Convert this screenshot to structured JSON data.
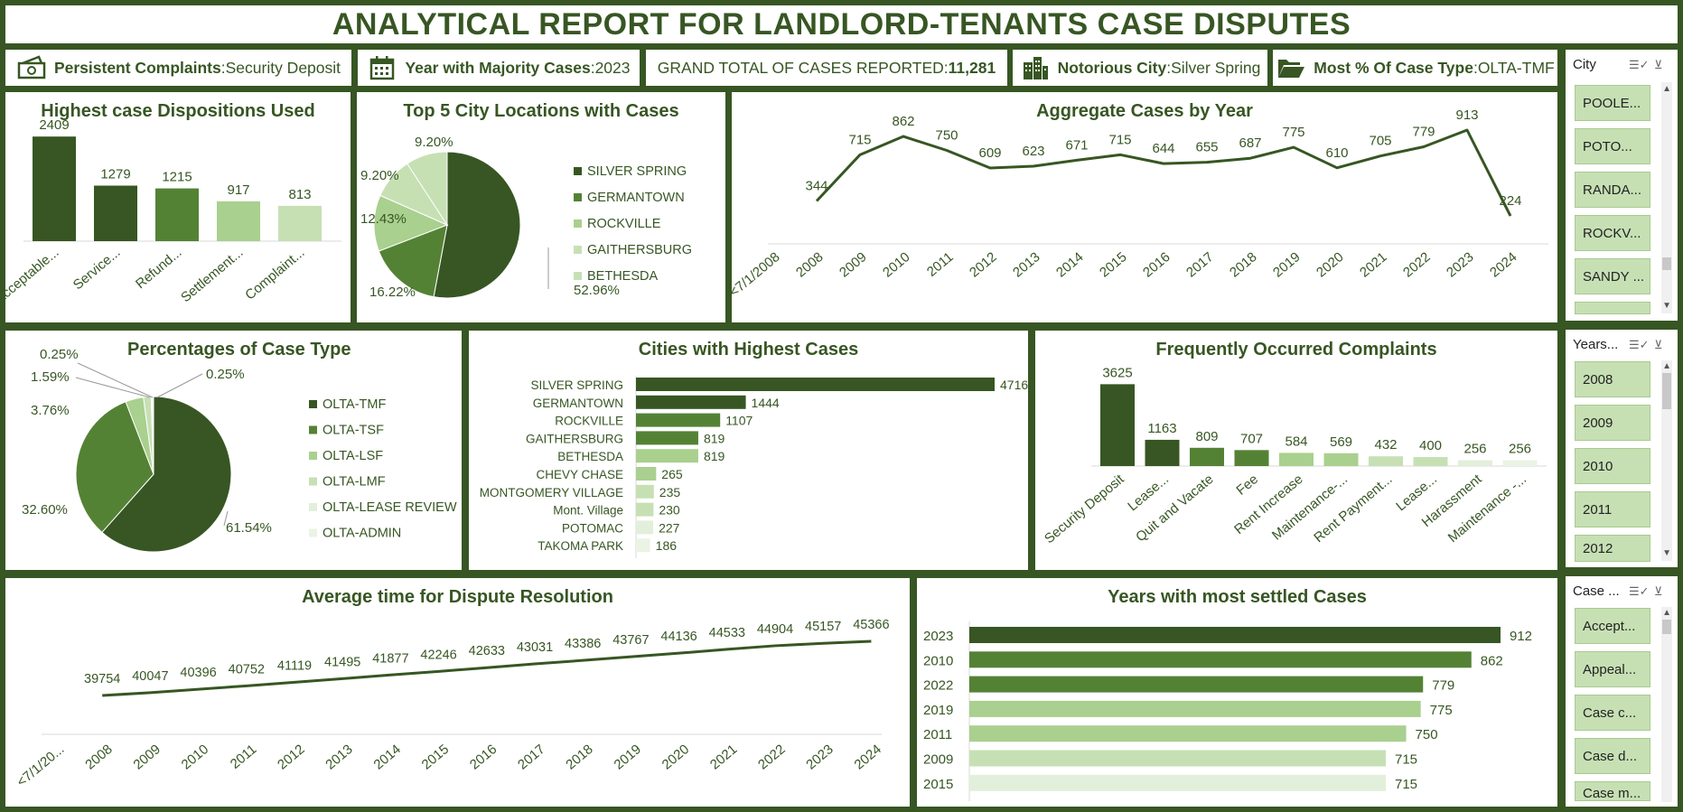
{
  "title": "ANALYTICAL REPORT FOR LANDLORD-TENANTS CASE DISPUTES",
  "kpis": {
    "k1": {
      "label": "Persistent Complaints",
      "sep": ":",
      "value": " Security Deposit",
      "icon": "money-icon"
    },
    "k2": {
      "label": "Year with Majority Cases",
      "sep": ":",
      "value": " 2023",
      "icon": "calendar-icon"
    },
    "k3": {
      "label": "GRAND TOTAL OF CASES REPORTED",
      "sep": ": ",
      "value": "11,281"
    },
    "k4": {
      "label": "Notorious City",
      "sep": ":",
      "value": " Silver Spring",
      "icon": "buildings-icon"
    },
    "k5": {
      "label": "Most % Of Case Type",
      "sep": ":",
      "value": " OLTA-TMF",
      "icon": "folder-icon"
    }
  },
  "colors": {
    "dark": "#375623",
    "mid": "#548235",
    "light": "#a9d08e",
    "pale": "#c6e0b4",
    "paler": "#e2efda",
    "palest": "#ebf3e5",
    "line": "#375623"
  },
  "chart_data": [
    {
      "id": "dispositions",
      "type": "bar",
      "title": "Highest case Dispositions Used",
      "categories": [
        "Acceptable...",
        "Service...",
        "Refund...",
        "Settlement...",
        "Complaint..."
      ],
      "values": [
        2409,
        1279,
        1215,
        917,
        813
      ],
      "ylim": [
        0,
        2600
      ]
    },
    {
      "id": "top5cities",
      "type": "pie",
      "title": "Top 5 City Locations  with Cases",
      "categories": [
        "SILVER SPRING",
        "GERMANTOWN",
        "ROCKVILLE",
        "GAITHERSBURG",
        "BETHESDA"
      ],
      "values": [
        52.96,
        16.22,
        12.43,
        9.2,
        9.2
      ],
      "labels": [
        "52.96%",
        "16.22%",
        "12.43%",
        "9.20%",
        "9.20%"
      ],
      "legend": "right"
    },
    {
      "id": "casesbyyear",
      "type": "line",
      "title": "Aggregate Cases by Year",
      "categories": [
        "<7/1/2008",
        "2008",
        "2009",
        "2010",
        "2011",
        "2012",
        "2013",
        "2014",
        "2015",
        "2016",
        "2017",
        "2018",
        "2019",
        "2020",
        "2021",
        "2022",
        "2023",
        "2024"
      ],
      "values": [
        null,
        344,
        715,
        862,
        750,
        609,
        623,
        671,
        715,
        644,
        655,
        687,
        775,
        610,
        705,
        779,
        913,
        224
      ],
      "ylim": [
        0,
        1000
      ]
    },
    {
      "id": "casetype",
      "type": "pie",
      "title": "Percentages of Case Type",
      "categories": [
        "OLTA-TMF",
        "OLTA-TSF",
        "OLTA-LSF",
        "OLTA-LMF",
        "OLTA-LEASE REVIEW",
        "OLTA-ADMIN"
      ],
      "values": [
        61.54,
        32.6,
        3.76,
        1.59,
        0.25,
        0.25
      ],
      "labels": [
        "61.54%",
        "32.60%",
        "3.76%",
        "1.59%",
        "0.25%",
        "0.25%"
      ],
      "legend": "right"
    },
    {
      "id": "citieshighest",
      "type": "bar",
      "orientation": "horizontal",
      "title": "Cities with Highest Cases",
      "categories": [
        "SILVER SPRING",
        "GERMANTOWN",
        "ROCKVILLE",
        "GAITHERSBURG",
        "BETHESDA",
        "CHEVY CHASE",
        "MONTGOMERY VILLAGE",
        "Mont. Village",
        "POTOMAC",
        "TAKOMA PARK"
      ],
      "values": [
        4716,
        1444,
        1107,
        819,
        819,
        265,
        235,
        230,
        227,
        186
      ],
      "xlim": [
        0,
        4716
      ]
    },
    {
      "id": "complaints",
      "type": "bar",
      "title": "Frequently Occurred Complaints",
      "categories": [
        "Security Deposit",
        "Lease...",
        "Quit and Vacate",
        "Fee",
        "Rent Increase",
        "Maintenance-...",
        "Rent Payment...",
        "Lease...",
        "Harassment",
        "Maintenance -..."
      ],
      "values": [
        3625,
        1163,
        809,
        707,
        584,
        569,
        432,
        400,
        256,
        256
      ],
      "ylim": [
        0,
        3800
      ]
    },
    {
      "id": "avgtime",
      "type": "line",
      "title": "Average time for Dispute Resolution",
      "categories": [
        "<7/1/20...",
        "2008",
        "2009",
        "2010",
        "2011",
        "2012",
        "2013",
        "2014",
        "2015",
        "2016",
        "2017",
        "2018",
        "2019",
        "2020",
        "2021",
        "2022",
        "2023",
        "2024"
      ],
      "values": [
        null,
        39754,
        40047,
        40396,
        40752,
        41119,
        41495,
        41877,
        42246,
        42633,
        43031,
        43386,
        43767,
        44136,
        44533,
        44904,
        45157,
        45366
      ],
      "ylim": [
        0,
        50000
      ]
    },
    {
      "id": "settledyears",
      "type": "bar",
      "orientation": "horizontal",
      "title": "Years with most settled Cases",
      "categories": [
        "2023",
        "2010",
        "2022",
        "2019",
        "2011",
        "2009",
        "2015"
      ],
      "values": [
        912,
        862,
        779,
        775,
        750,
        715,
        715
      ],
      "xlim": [
        0,
        912
      ]
    }
  ],
  "slicers": {
    "city": {
      "title": "City",
      "items": [
        "POOLE...",
        "POTO...",
        "RANDA...",
        "ROCKV...",
        "SANDY ..."
      ]
    },
    "years": {
      "title": "Years...",
      "items": [
        "2008",
        "2009",
        "2010",
        "2011",
        "2012"
      ]
    },
    "casetype": {
      "title": "Case ...",
      "items": [
        "Accept...",
        "Appeal...",
        "Case c...",
        "Case d...",
        "Case m..."
      ]
    }
  }
}
